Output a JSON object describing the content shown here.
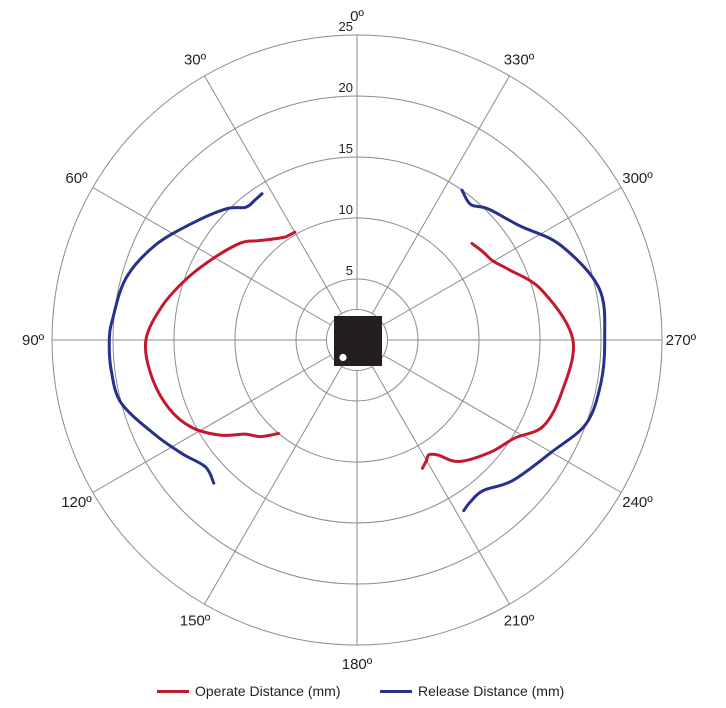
{
  "colors": {
    "operate": "#c4182f",
    "release": "#27318b",
    "grid": "#8c8c8c",
    "sensor": "#231f20"
  },
  "chart_data": {
    "type": "line",
    "polar": true,
    "angle_direction": "counterclockwise",
    "angle_zero": "top",
    "angle_labels": [
      "0º",
      "30º",
      "60º",
      "90º",
      "120º",
      "150º",
      "180º",
      "210º",
      "240º",
      "270º",
      "300º",
      "330º"
    ],
    "angle_ticks": [
      0,
      30,
      60,
      90,
      120,
      150,
      180,
      210,
      240,
      270,
      300,
      330
    ],
    "radial_ticks": [
      5,
      10,
      15,
      20,
      25
    ],
    "radial_tick_labels": [
      "5",
      "10",
      "15",
      "20",
      "25"
    ],
    "rlim": [
      0,
      25
    ],
    "grid": true,
    "legend_position": "bottom",
    "series": [
      {
        "name": "Operate Distance (mm)",
        "segments": [
          [
            [
              30,
              10.2
            ],
            [
              35,
              10.3
            ],
            [
              40,
              10.8
            ],
            [
              45,
              11.5
            ],
            [
              50,
              12.4
            ],
            [
              60,
              13.5
            ],
            [
              70,
              14.8
            ],
            [
              80,
              16.2
            ],
            [
              90,
              17.3
            ],
            [
              100,
              17.1
            ],
            [
              110,
              16.4
            ],
            [
              118,
              15.3
            ],
            [
              125,
              13.6
            ],
            [
              130,
              12.0
            ],
            [
              135,
              11.2
            ],
            [
              140,
              10.0
            ]
          ],
          [
            [
              310,
              12.3
            ],
            [
              305,
              12.6
            ],
            [
              300,
              12.9
            ],
            [
              295,
              13.7
            ],
            [
              285,
              15.7
            ],
            [
              270,
              17.7
            ],
            [
              255,
              17.3
            ],
            [
              245,
              16.8
            ],
            [
              238,
              15.2
            ],
            [
              230,
              14.3
            ],
            [
              220,
              13.0
            ],
            [
              215,
              11.5
            ],
            [
              212,
              11.1
            ],
            [
              210,
              11.4
            ],
            [
              207,
              11.8
            ]
          ]
        ]
      },
      {
        "name": "Release Distance (mm)",
        "segments": [
          [
            [
              33,
              14.3
            ],
            [
              36,
              14.2
            ],
            [
              40,
              14.2
            ],
            [
              45,
              15.2
            ],
            [
              55,
              16.6
            ],
            [
              65,
              18.3
            ],
            [
              75,
              19.6
            ],
            [
              85,
              20.1
            ],
            [
              90,
              20.3
            ],
            [
              97,
              20.3
            ],
            [
              105,
              20.0
            ],
            [
              115,
              18.3
            ],
            [
              123,
              17.1
            ],
            [
              130,
              16.2
            ],
            [
              135,
              16.6
            ]
          ],
          [
            [
              325,
              15.0
            ],
            [
              320,
              14.5
            ],
            [
              315,
              15.2
            ],
            [
              305,
              16.3
            ],
            [
              295,
              18.4
            ],
            [
              282,
              20.3
            ],
            [
              270,
              20.3
            ],
            [
              260,
              20.3
            ],
            [
              250,
              20.0
            ],
            [
              240,
              18.4
            ],
            [
              228,
              17.2
            ],
            [
              220,
              16.1
            ],
            [
              215,
              16.2
            ],
            [
              212,
              16.5
            ]
          ]
        ]
      }
    ]
  }
}
